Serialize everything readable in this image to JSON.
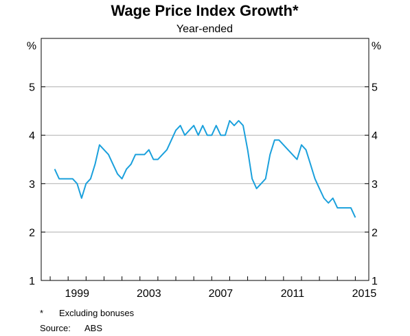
{
  "chart_data": {
    "type": "line",
    "title": "Wage Price Index Growth*",
    "subtitle": "Year-ended",
    "xlabel": "",
    "ylabel": "",
    "y_unit_left": "%",
    "y_unit_right": "%",
    "ylim": [
      1,
      6
    ],
    "yticks": [
      1,
      2,
      3,
      4,
      5
    ],
    "xlim": [
      1997.5,
      2015.75
    ],
    "xticks": [
      1999,
      2003,
      2007,
      2011,
      2015
    ],
    "xtick_labels": [
      "1999",
      "2003",
      "2007",
      "2011",
      "2015"
    ],
    "grid": true,
    "line_color": "#1aa0dc",
    "series": [
      {
        "name": "",
        "x": [
          1998.25,
          1998.5,
          1998.75,
          1999.0,
          1999.25,
          1999.5,
          1999.75,
          2000.0,
          2000.25,
          2000.5,
          2000.75,
          2001.0,
          2001.25,
          2001.5,
          2001.75,
          2002.0,
          2002.25,
          2002.5,
          2002.75,
          2003.0,
          2003.25,
          2003.5,
          2003.75,
          2004.0,
          2004.25,
          2004.5,
          2004.75,
          2005.0,
          2005.25,
          2005.5,
          2005.75,
          2006.0,
          2006.25,
          2006.5,
          2006.75,
          2007.0,
          2007.25,
          2007.5,
          2007.75,
          2008.0,
          2008.25,
          2008.5,
          2008.75,
          2009.0,
          2009.25,
          2009.5,
          2009.75,
          2010.0,
          2010.25,
          2010.5,
          2010.75,
          2011.0,
          2011.25,
          2011.5,
          2011.75,
          2012.0,
          2012.25,
          2012.5,
          2012.75,
          2013.0,
          2013.25,
          2013.5,
          2013.75,
          2014.0,
          2014.25,
          2014.5,
          2014.75,
          2015.0
        ],
        "values": [
          3.3,
          3.1,
          3.1,
          3.1,
          3.1,
          3.0,
          2.7,
          3.0,
          3.1,
          3.4,
          3.8,
          3.7,
          3.6,
          3.4,
          3.2,
          3.1,
          3.3,
          3.4,
          3.6,
          3.6,
          3.6,
          3.7,
          3.5,
          3.5,
          3.6,
          3.7,
          3.9,
          4.1,
          4.2,
          4.0,
          4.1,
          4.2,
          4.0,
          4.2,
          4.0,
          4.0,
          4.2,
          4.0,
          4.0,
          4.3,
          4.2,
          4.3,
          4.2,
          3.7,
          3.1,
          2.9,
          3.0,
          3.1,
          3.6,
          3.9,
          3.9,
          3.8,
          3.7,
          3.6,
          3.5,
          3.8,
          3.7,
          3.4,
          3.1,
          2.9,
          2.7,
          2.6,
          2.7,
          2.5,
          2.5,
          2.5,
          2.5,
          2.3
        ]
      }
    ]
  },
  "footnotes": {
    "marker": "*",
    "note": "Excluding bonuses",
    "source_label": "Source:",
    "source_value": "ABS"
  }
}
